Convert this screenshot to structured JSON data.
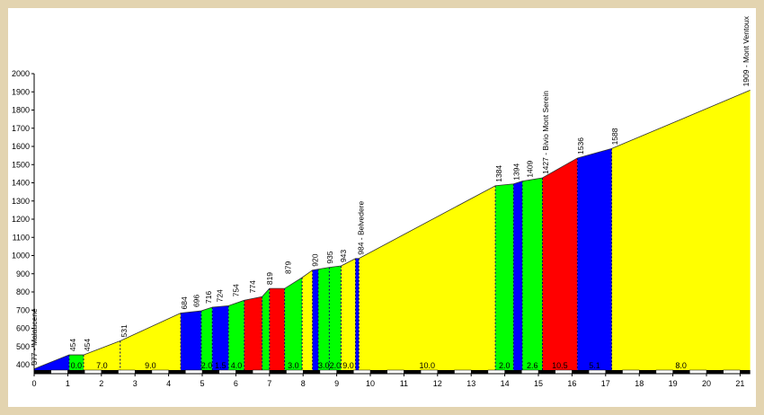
{
  "chart_data": {
    "type": "area",
    "title": "",
    "xlabel": "",
    "ylabel": "",
    "xlim": [
      0,
      21.3
    ],
    "ylim": [
      350,
      2000
    ],
    "x_ticks": [
      0,
      1,
      2,
      3,
      4,
      5,
      6,
      7,
      8,
      9,
      10,
      11,
      12,
      13,
      14,
      15,
      16,
      17,
      18,
      19,
      20,
      21
    ],
    "y_ticks": [
      400,
      500,
      600,
      700,
      800,
      900,
      1000,
      1100,
      1200,
      1300,
      1400,
      1500,
      1600,
      1700,
      1800,
      1900,
      2000
    ],
    "grid": false,
    "legend": "none",
    "profile": [
      {
        "x": 0.0,
        "y": 377
      },
      {
        "x": 1.04,
        "y": 454
      },
      {
        "x": 1.47,
        "y": 454
      },
      {
        "x": 2.56,
        "y": 531
      },
      {
        "x": 4.36,
        "y": 684
      },
      {
        "x": 4.97,
        "y": 696
      },
      {
        "x": 5.3,
        "y": 716
      },
      {
        "x": 5.78,
        "y": 724
      },
      {
        "x": 6.25,
        "y": 754
      },
      {
        "x": 6.78,
        "y": 774
      },
      {
        "x": 7.0,
        "y": 819
      },
      {
        "x": 7.45,
        "y": 819
      },
      {
        "x": 7.97,
        "y": 879
      },
      {
        "x": 8.28,
        "y": 920
      },
      {
        "x": 8.78,
        "y": 935
      },
      {
        "x": 9.13,
        "y": 943
      },
      {
        "x": 9.56,
        "y": 984
      },
      {
        "x": 9.66,
        "y": 984
      },
      {
        "x": 13.72,
        "y": 1384
      },
      {
        "x": 14.26,
        "y": 1394
      },
      {
        "x": 14.52,
        "y": 1409
      },
      {
        "x": 15.12,
        "y": 1427
      },
      {
        "x": 16.16,
        "y": 1536
      },
      {
        "x": 17.18,
        "y": 1588
      },
      {
        "x": 21.3,
        "y": 1909
      }
    ],
    "segments": [
      {
        "x0": 0.0,
        "x1": 1.04,
        "color": "#0000ff",
        "grade": ""
      },
      {
        "x0": 1.04,
        "x1": 1.47,
        "color": "#00ff00",
        "grade": "0.0"
      },
      {
        "x0": 1.47,
        "x1": 2.56,
        "color": "#ffff00",
        "grade": "7.0"
      },
      {
        "x0": 2.56,
        "x1": 4.36,
        "color": "#ffff00",
        "grade": "9.0"
      },
      {
        "x0": 4.36,
        "x1": 4.97,
        "color": "#0000ff",
        "grade": ""
      },
      {
        "x0": 4.97,
        "x1": 5.3,
        "color": "#00ff00",
        "grade": "2.0"
      },
      {
        "x0": 5.3,
        "x1": 5.78,
        "color": "#0000ff",
        "grade": "1.5"
      },
      {
        "x0": 5.78,
        "x1": 6.25,
        "color": "#00ff00",
        "grade": "4.0"
      },
      {
        "x0": 6.25,
        "x1": 6.78,
        "color": "#ff0000",
        "grade": ""
      },
      {
        "x0": 6.78,
        "x1": 7.0,
        "color": "#00ff00",
        "grade": ""
      },
      {
        "x0": 7.0,
        "x1": 7.45,
        "color": "#ff0000",
        "grade": ""
      },
      {
        "x0": 7.45,
        "x1": 7.97,
        "color": "#00ff00",
        "grade": "3.0"
      },
      {
        "x0": 7.97,
        "x1": 8.28,
        "color": "#ffff00",
        "grade": ""
      },
      {
        "x0": 8.28,
        "x1": 8.45,
        "color": "#0000ff",
        "grade": ""
      },
      {
        "x0": 8.45,
        "x1": 8.78,
        "color": "#00ff00",
        "grade": "3.0"
      },
      {
        "x0": 8.78,
        "x1": 9.13,
        "color": "#00ff00",
        "grade": "2.0"
      },
      {
        "x0": 9.13,
        "x1": 9.56,
        "color": "#ffff00",
        "grade": "9.0"
      },
      {
        "x0": 9.56,
        "x1": 9.66,
        "color": "#0000ff",
        "grade": ""
      },
      {
        "x0": 9.66,
        "x1": 13.72,
        "color": "#ffff00",
        "grade": "10.0"
      },
      {
        "x0": 13.72,
        "x1": 14.26,
        "color": "#00ff00",
        "grade": "2.0"
      },
      {
        "x0": 14.26,
        "x1": 14.52,
        "color": "#0000ff",
        "grade": ""
      },
      {
        "x0": 14.52,
        "x1": 15.12,
        "color": "#00ff00",
        "grade": "2.6"
      },
      {
        "x0": 15.12,
        "x1": 16.16,
        "color": "#ff0000",
        "grade": "10.5"
      },
      {
        "x0": 16.16,
        "x1": 17.18,
        "color": "#0000ff",
        "grade": "5.1"
      },
      {
        "x0": 17.18,
        "x1": 21.3,
        "color": "#ffff00",
        "grade": "8.0"
      }
    ],
    "annotations": [
      {
        "x": 0.0,
        "y": 377,
        "label": "377 - Malaucene"
      },
      {
        "x": 1.15,
        "y": 454,
        "label": "454"
      },
      {
        "x": 1.58,
        "y": 454,
        "label": "454"
      },
      {
        "x": 2.67,
        "y": 531,
        "label": "531"
      },
      {
        "x": 4.47,
        "y": 684,
        "label": "684"
      },
      {
        "x": 4.82,
        "y": 696,
        "label": "696"
      },
      {
        "x": 5.19,
        "y": 716,
        "label": "716"
      },
      {
        "x": 5.52,
        "y": 724,
        "label": "724"
      },
      {
        "x": 6.0,
        "y": 754,
        "label": "754"
      },
      {
        "x": 6.5,
        "y": 774,
        "label": "774"
      },
      {
        "x": 7.0,
        "y": 819,
        "label": "819"
      },
      {
        "x": 7.55,
        "y": 879,
        "label": "879"
      },
      {
        "x": 8.35,
        "y": 920,
        "label": "920"
      },
      {
        "x": 8.8,
        "y": 935,
        "label": "935"
      },
      {
        "x": 9.2,
        "y": 943,
        "label": "943"
      },
      {
        "x": 9.72,
        "y": 984,
        "label": "984 - Belvedere"
      },
      {
        "x": 13.82,
        "y": 1384,
        "label": "1384"
      },
      {
        "x": 14.35,
        "y": 1394,
        "label": "1394"
      },
      {
        "x": 14.75,
        "y": 1409,
        "label": "1409"
      },
      {
        "x": 15.22,
        "y": 1427,
        "label": "1427 - Bivio Mont Serein"
      },
      {
        "x": 16.26,
        "y": 1536,
        "label": "1536"
      },
      {
        "x": 17.27,
        "y": 1588,
        "label": "1588"
      },
      {
        "x": 21.3,
        "y": 1909,
        "label": "1909 - Mont Ventoux"
      }
    ],
    "colors": {
      "blue": "#0000ff",
      "green": "#00ff00",
      "yellow": "#ffff00",
      "red": "#ff0000",
      "frame": "#e3d4b0"
    }
  }
}
